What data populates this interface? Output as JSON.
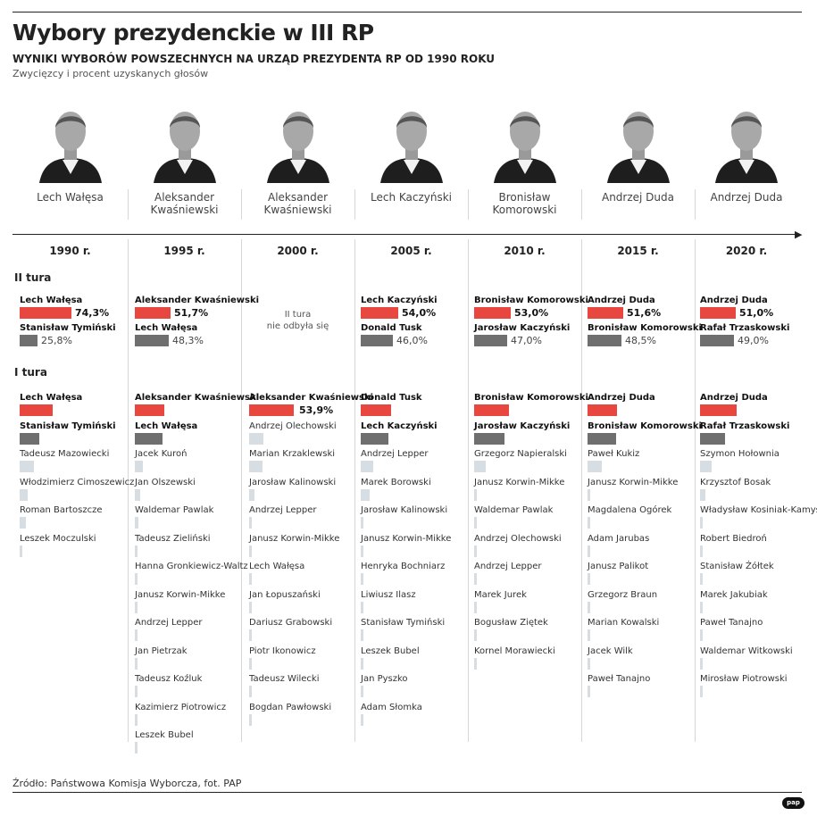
{
  "title": "Wybory prezydenckie w III RP",
  "subtitle": "WYNIKI WYBORÓW POWSZECHNYCH NA URZĄD PREZYDENTA RP OD 1990 ROKU",
  "caption": "Zwycięzcy i procent uzyskanych głosów",
  "source": "Źródło: Państwowa Komisja Wyborcza, fot. PAP",
  "logo": "pap",
  "labels": {
    "round2": "II tura",
    "round1": "I tura"
  },
  "colors": {
    "winner": "#e8473f",
    "runner_up": "#6f6f6f",
    "others": "#d6dde3"
  },
  "chart_data": {
    "type": "bar",
    "title": "Wybory prezydenckie w III RP",
    "columns": [
      {
        "year": "1990 r.",
        "winner": "Lech Wałęsa",
        "round2": {
          "rows": [
            {
              "name": "Lech Wałęsa",
              "value": 74.3,
              "label": "74,3%",
              "role": "winner"
            },
            {
              "name": "Stanisław Tymiński",
              "value": 25.8,
              "label": "25,8%",
              "role": "runner_up"
            }
          ]
        },
        "round1": [
          {
            "name": "Lech Wałęsa",
            "value": 39.96,
            "role": "winner"
          },
          {
            "name": "Stanisław Tymiński",
            "value": 23.1,
            "role": "runner_up"
          },
          {
            "name": "Tadeusz Mazowiecki",
            "value": 18.08,
            "role": "other"
          },
          {
            "name": "Włodzimierz Cimoszewicz",
            "value": 9.21,
            "role": "other"
          },
          {
            "name": "Roman Bartoszcze",
            "value": 7.15,
            "role": "other"
          },
          {
            "name": "Leszek Moczulski",
            "value": 2.5,
            "role": "other"
          }
        ]
      },
      {
        "year": "1995 r.",
        "winner": "Aleksander\nKwaśniewski",
        "round2": {
          "rows": [
            {
              "name": "Aleksander Kwaśniewski",
              "value": 51.7,
              "label": "51,7%",
              "role": "winner"
            },
            {
              "name": "Lech Wałęsa",
              "value": 48.3,
              "label": "48,3%",
              "role": "runner_up"
            }
          ]
        },
        "round1": [
          {
            "name": "Aleksander Kwaśniewski",
            "value": 35.11,
            "role": "winner"
          },
          {
            "name": "Lech Wałęsa",
            "value": 33.11,
            "role": "runner_up"
          },
          {
            "name": "Jacek Kuroń",
            "value": 9.22,
            "role": "other"
          },
          {
            "name": "Jan Olszewski",
            "value": 6.86,
            "role": "other"
          },
          {
            "name": "Waldemar Pawlak",
            "value": 4.31,
            "role": "other"
          },
          {
            "name": "Tadeusz Zieliński",
            "value": 3.53,
            "role": "other"
          },
          {
            "name": "Hanna Gronkiewicz-Waltz",
            "value": 2.76,
            "role": "other"
          },
          {
            "name": "Janusz Korwin-Mikke",
            "value": 2.4,
            "role": "other"
          },
          {
            "name": "Andrzej Lepper",
            "value": 1.32,
            "role": "other"
          },
          {
            "name": "Jan Pietrzak",
            "value": 1.12,
            "role": "other"
          },
          {
            "name": "Tadeusz Koźluk",
            "value": 0.16,
            "role": "other"
          },
          {
            "name": "Kazimierz Piotrowicz",
            "value": 0.07,
            "role": "other"
          },
          {
            "name": "Leszek Bubel",
            "value": 0.04,
            "role": "other"
          }
        ]
      },
      {
        "year": "2000 r.",
        "winner": "Aleksander\nKwaśniewski",
        "round2": {
          "note": "II tura\nnie odbyła się",
          "rows": []
        },
        "round1": [
          {
            "name": "Aleksander Kwaśniewski",
            "value": 53.9,
            "label": "53,9%",
            "role": "winner"
          },
          {
            "name": "Andrzej Olechowski",
            "value": 17.3,
            "role": "other"
          },
          {
            "name": "Marian Krzaklewski",
            "value": 15.57,
            "role": "other"
          },
          {
            "name": "Jarosław Kalinowski",
            "value": 5.95,
            "role": "other"
          },
          {
            "name": "Andrzej Lepper",
            "value": 3.05,
            "role": "other"
          },
          {
            "name": "Janusz Korwin-Mikke",
            "value": 1.43,
            "role": "other"
          },
          {
            "name": "Lech Wałęsa",
            "value": 1.01,
            "role": "other"
          },
          {
            "name": "Jan Łopuszański",
            "value": 0.79,
            "role": "other"
          },
          {
            "name": "Dariusz Grabowski",
            "value": 0.51,
            "role": "other"
          },
          {
            "name": "Piotr Ikonowicz",
            "value": 0.22,
            "role": "other"
          },
          {
            "name": "Tadeusz Wilecki",
            "value": 0.16,
            "role": "other"
          },
          {
            "name": "Bogdan Pawłowski",
            "value": 0.1,
            "role": "other"
          }
        ]
      },
      {
        "year": "2005 r.",
        "winner": "Lech Kaczyński",
        "round2": {
          "rows": [
            {
              "name": "Lech Kaczyński",
              "value": 54.0,
              "label": "54,0%",
              "role": "winner"
            },
            {
              "name": "Donald Tusk",
              "value": 46.0,
              "label": "46,0%",
              "role": "runner_up"
            }
          ]
        },
        "round1": [
          {
            "name": "Donald Tusk",
            "value": 36.33,
            "role": "winner"
          },
          {
            "name": "Lech Kaczyński",
            "value": 33.1,
            "role": "runner_up"
          },
          {
            "name": "Andrzej Lepper",
            "value": 15.11,
            "role": "other"
          },
          {
            "name": "Marek Borowski",
            "value": 10.33,
            "role": "other"
          },
          {
            "name": "Jarosław Kalinowski",
            "value": 1.8,
            "role": "other"
          },
          {
            "name": "Janusz Korwin-Mikke",
            "value": 1.43,
            "role": "other"
          },
          {
            "name": "Henryka Bochniarz",
            "value": 1.26,
            "role": "other"
          },
          {
            "name": "Liwiusz Ilasz",
            "value": 0.21,
            "role": "other"
          },
          {
            "name": "Stanisław Tymiński",
            "value": 0.16,
            "role": "other"
          },
          {
            "name": "Leszek Bubel",
            "value": 0.14,
            "role": "other"
          },
          {
            "name": "Jan Pyszko",
            "value": 0.1,
            "role": "other"
          },
          {
            "name": "Adam Słomka",
            "value": 0.09,
            "role": "other"
          }
        ]
      },
      {
        "year": "2010 r.",
        "winner": "Bronisław\nKomorowski",
        "round2": {
          "rows": [
            {
              "name": "Bronisław Komorowski",
              "value": 53.0,
              "label": "53,0%",
              "role": "winner"
            },
            {
              "name": "Jarosław Kaczyński",
              "value": 47.0,
              "label": "47,0%",
              "role": "runner_up"
            }
          ]
        },
        "round1": [
          {
            "name": "Bronisław Komorowski",
            "value": 41.54,
            "role": "winner"
          },
          {
            "name": "Jarosław Kaczyński",
            "value": 36.46,
            "role": "runner_up"
          },
          {
            "name": "Grzegorz Napieralski",
            "value": 13.68,
            "role": "other"
          },
          {
            "name": "Janusz Korwin-Mikke",
            "value": 2.48,
            "role": "other"
          },
          {
            "name": "Waldemar Pawlak",
            "value": 1.75,
            "role": "other"
          },
          {
            "name": "Andrzej Olechowski",
            "value": 1.44,
            "role": "other"
          },
          {
            "name": "Andrzej Lepper",
            "value": 1.28,
            "role": "other"
          },
          {
            "name": "Marek Jurek",
            "value": 1.06,
            "role": "other"
          },
          {
            "name": "Bogusław Ziętek",
            "value": 0.18,
            "role": "other"
          },
          {
            "name": "Kornel Morawiecki",
            "value": 0.13,
            "role": "other"
          }
        ]
      },
      {
        "year": "2015 r.",
        "winner": "Andrzej Duda",
        "round2": {
          "rows": [
            {
              "name": "Andrzej Duda",
              "value": 51.6,
              "label": "51,6%",
              "role": "winner"
            },
            {
              "name": "Bronisław Komorowski",
              "value": 48.5,
              "label": "48,5%",
              "role": "runner_up"
            }
          ]
        },
        "round1": [
          {
            "name": "Andrzej Duda",
            "value": 34.76,
            "role": "winner"
          },
          {
            "name": "Bronisław Komorowski",
            "value": 33.77,
            "role": "runner_up"
          },
          {
            "name": "Paweł Kukiz",
            "value": 20.8,
            "role": "other"
          },
          {
            "name": "Janusz Korwin-Mikke",
            "value": 3.26,
            "role": "other"
          },
          {
            "name": "Magdalena Ogórek",
            "value": 2.38,
            "role": "other"
          },
          {
            "name": "Adam Jarubas",
            "value": 1.6,
            "role": "other"
          },
          {
            "name": "Janusz Palikot",
            "value": 1.42,
            "role": "other"
          },
          {
            "name": "Grzegorz Braun",
            "value": 0.83,
            "role": "other"
          },
          {
            "name": "Marian Kowalski",
            "value": 0.52,
            "role": "other"
          },
          {
            "name": "Jacek Wilk",
            "value": 0.46,
            "role": "other"
          },
          {
            "name": "Paweł Tanajno",
            "value": 0.2,
            "role": "other"
          }
        ]
      },
      {
        "year": "2020 r.",
        "winner": "Andrzej Duda",
        "round2": {
          "rows": [
            {
              "name": "Andrzej Duda",
              "value": 51.0,
              "label": "51,0%",
              "role": "winner"
            },
            {
              "name": "Rafał Trzaskowski",
              "value": 49.0,
              "label": "49,0%",
              "role": "runner_up"
            }
          ]
        },
        "round1": [
          {
            "name": "Andrzej Duda",
            "value": 43.5,
            "role": "winner"
          },
          {
            "name": "Rafał Trzaskowski",
            "value": 30.46,
            "role": "runner_up"
          },
          {
            "name": "Szymon Hołownia",
            "value": 13.87,
            "role": "other"
          },
          {
            "name": "Krzysztof Bosak",
            "value": 6.78,
            "role": "other"
          },
          {
            "name": "Władysław Kosiniak-Kamysz",
            "value": 2.36,
            "role": "other"
          },
          {
            "name": "Robert Biedroń",
            "value": 2.22,
            "role": "other"
          },
          {
            "name": "Stanisław Żółtek",
            "value": 0.23,
            "role": "other"
          },
          {
            "name": "Marek Jakubiak",
            "value": 0.17,
            "role": "other"
          },
          {
            "name": "Paweł Tanajno",
            "value": 0.14,
            "role": "other"
          },
          {
            "name": "Waldemar Witkowski",
            "value": 0.14,
            "role": "other"
          },
          {
            "name": "Mirosław Piotrowski",
            "value": 0.11,
            "role": "other"
          }
        ]
      }
    ]
  }
}
